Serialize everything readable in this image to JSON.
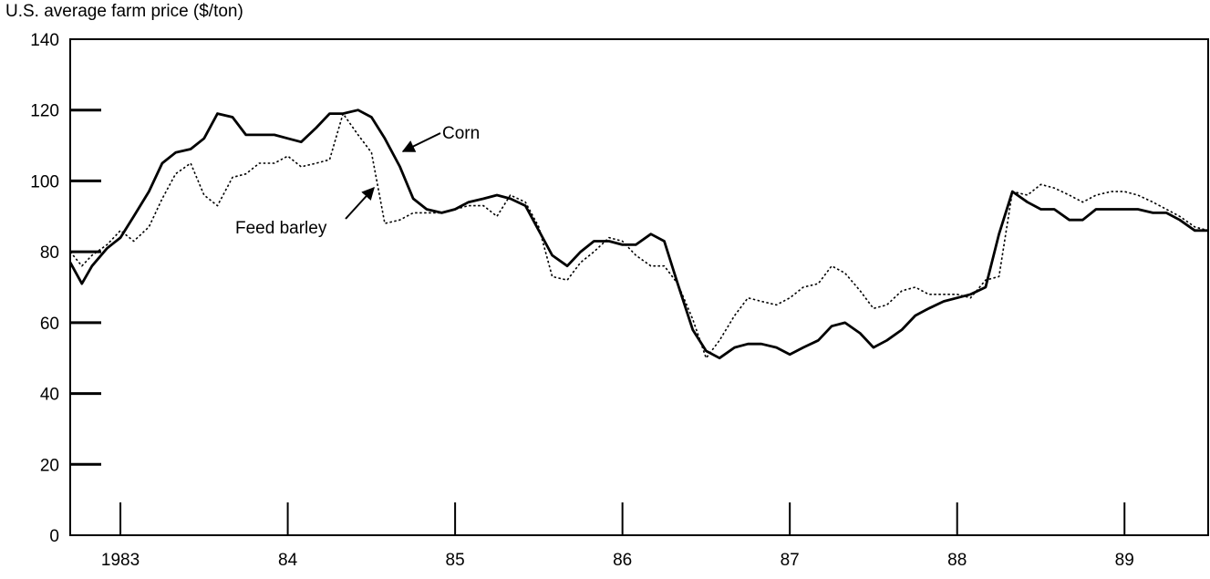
{
  "chart_data": {
    "type": "line",
    "title": "",
    "ylabel": "U.S. average farm price ($/ton)",
    "xlabel": "",
    "ylim": [
      0,
      140
    ],
    "yticks": [
      0,
      20,
      40,
      60,
      80,
      100,
      120,
      140
    ],
    "xlim": [
      1982.7,
      1989.5
    ],
    "xticks": [
      {
        "value": 1983,
        "label": "1983"
      },
      {
        "value": 1984,
        "label": "84"
      },
      {
        "value": 1985,
        "label": "85"
      },
      {
        "value": 1986,
        "label": "86"
      },
      {
        "value": 1987,
        "label": "87"
      },
      {
        "value": 1988,
        "label": "88"
      },
      {
        "value": 1989,
        "label": "89"
      }
    ],
    "grid": false,
    "legend": "none",
    "annotations": [
      {
        "text": "Corn",
        "series": "Corn"
      },
      {
        "text": "Feed barley",
        "series": "Feed barley"
      }
    ],
    "series": [
      {
        "name": "Corn",
        "style": "solid",
        "color": "#000000",
        "x": [
          1982.7,
          1982.77,
          1982.83,
          1982.92,
          1983.0,
          1983.08,
          1983.17,
          1983.25,
          1983.33,
          1983.42,
          1983.5,
          1983.58,
          1983.67,
          1983.75,
          1983.83,
          1983.92,
          1984.0,
          1984.08,
          1984.17,
          1984.25,
          1984.33,
          1984.42,
          1984.5,
          1984.58,
          1984.67,
          1984.75,
          1984.83,
          1984.92,
          1985.0,
          1985.08,
          1985.17,
          1985.25,
          1985.33,
          1985.42,
          1985.5,
          1985.58,
          1985.67,
          1985.75,
          1985.83,
          1985.92,
          1986.0,
          1986.08,
          1986.17,
          1986.25,
          1986.33,
          1986.42,
          1986.5,
          1986.58,
          1986.67,
          1986.75,
          1986.83,
          1986.92,
          1987.0,
          1987.08,
          1987.17,
          1987.25,
          1987.33,
          1987.42,
          1987.5,
          1987.58,
          1987.67,
          1987.75,
          1987.83,
          1987.92,
          1988.0,
          1988.08,
          1988.17,
          1988.25,
          1988.33,
          1988.42,
          1988.5,
          1988.58,
          1988.67,
          1988.75,
          1988.83,
          1988.92,
          1989.0,
          1989.08,
          1989.17,
          1989.25,
          1989.33,
          1989.42,
          1989.5
        ],
        "values": [
          77,
          71,
          76,
          81,
          84,
          90,
          97,
          105,
          108,
          109,
          112,
          119,
          118,
          113,
          113,
          113,
          112,
          111,
          115,
          119,
          119,
          120,
          118,
          112,
          104,
          95,
          92,
          91,
          92,
          94,
          95,
          96,
          95,
          93,
          86,
          79,
          76,
          80,
          83,
          83,
          82,
          82,
          85,
          83,
          71,
          58,
          52,
          50,
          53,
          54,
          54,
          53,
          51,
          53,
          55,
          59,
          60,
          57,
          53,
          55,
          58,
          62,
          64,
          66,
          67,
          68,
          70,
          85,
          97,
          94,
          92,
          92,
          89,
          89,
          92,
          92,
          92,
          92,
          91,
          91,
          89,
          86,
          86
        ]
      },
      {
        "name": "Feed barley",
        "style": "dotted",
        "color": "#000000",
        "x": [
          1982.7,
          1982.77,
          1982.83,
          1982.92,
          1983.0,
          1983.08,
          1983.17,
          1983.25,
          1983.33,
          1983.42,
          1983.5,
          1983.58,
          1983.67,
          1983.75,
          1983.83,
          1983.92,
          1984.0,
          1984.08,
          1984.17,
          1984.25,
          1984.33,
          1984.42,
          1984.5,
          1984.58,
          1984.67,
          1984.75,
          1984.83,
          1984.92,
          1985.0,
          1985.08,
          1985.17,
          1985.25,
          1985.33,
          1985.42,
          1985.5,
          1985.58,
          1985.67,
          1985.75,
          1985.83,
          1985.92,
          1986.0,
          1986.08,
          1986.17,
          1986.25,
          1986.33,
          1986.42,
          1986.5,
          1986.58,
          1986.67,
          1986.75,
          1986.83,
          1986.92,
          1987.0,
          1987.08,
          1987.17,
          1987.25,
          1987.33,
          1987.42,
          1987.5,
          1987.58,
          1987.67,
          1987.75,
          1987.83,
          1987.92,
          1988.0,
          1988.08,
          1988.17,
          1988.25,
          1988.33,
          1988.42,
          1988.5,
          1988.58,
          1988.67,
          1988.75,
          1988.83,
          1988.92,
          1989.0,
          1989.08,
          1989.17,
          1989.25,
          1989.33,
          1989.42,
          1989.5
        ],
        "values": [
          80,
          76,
          79,
          82,
          86,
          83,
          87,
          95,
          102,
          105,
          96,
          93,
          101,
          102,
          105,
          105,
          107,
          104,
          105,
          106,
          119,
          113,
          108,
          88,
          89,
          91,
          91,
          91,
          92,
          93,
          93,
          90,
          96,
          94,
          87,
          73,
          72,
          77,
          80,
          84,
          83,
          79,
          76,
          76,
          71,
          61,
          50,
          55,
          62,
          67,
          66,
          65,
          67,
          70,
          71,
          76,
          74,
          69,
          64,
          65,
          69,
          70,
          68,
          68,
          68,
          67,
          72,
          73,
          97,
          96,
          99,
          98,
          96,
          94,
          96,
          97,
          97,
          96,
          94,
          92,
          90,
          87,
          86
        ]
      }
    ]
  }
}
